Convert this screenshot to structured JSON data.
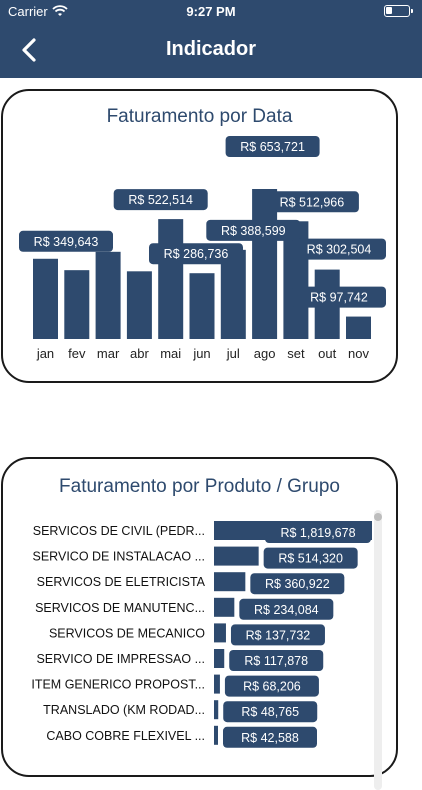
{
  "status_bar": {
    "carrier": "Carrier",
    "time": "9:27 PM"
  },
  "header": {
    "title": "Indicador",
    "back_icon": "chevron-left-icon"
  },
  "colors": {
    "primary": "#2e4a6e",
    "background": "#ffffff"
  },
  "chart_data": [
    {
      "type": "bar",
      "title": "Faturamento por Data",
      "categories": [
        "jan",
        "fev",
        "mar",
        "abr",
        "mai",
        "jun",
        "jul",
        "ago",
        "set",
        "out",
        "nov"
      ],
      "values": [
        349643,
        300000,
        380000,
        295000,
        522514,
        286736,
        388599,
        653721,
        512966,
        302504,
        97742
      ],
      "data_labels": {
        "0": "R$ 349,643",
        "4": "R$ 522,514",
        "5": "R$ 286,736",
        "6": "R$ 388,599",
        "7": "R$ 653,721",
        "8": "R$ 512,966",
        "9": "R$ 302,504",
        "10": "R$ 97,742"
      }
    },
    {
      "type": "bar",
      "orientation": "horizontal",
      "title": "Faturamento por Produto / Grupo",
      "categories": [
        "SERVICOS DE CIVIL (PEDR...",
        "SERVICO DE INSTALACAO ...",
        "SERVICOS DE ELETRICISTA",
        "SERVICOS DE MANUTENC...",
        "SERVICOS DE MECANICO",
        "SERVICO DE IMPRESSAO ...",
        "ITEM GENERICO PROPOST...",
        "TRANSLADO (KM RODAD...",
        "CABO COBRE FLEXIVEL ..."
      ],
      "values": [
        1819678,
        514320,
        360922,
        234084,
        137732,
        117878,
        68206,
        48765,
        42588
      ],
      "data_labels": [
        "R$ 1,819,678",
        "R$ 514,320",
        "R$ 360,922",
        "R$ 234,084",
        "R$ 137,732",
        "R$ 117,878",
        "R$ 68,206",
        "R$ 48,765",
        "R$ 42,588"
      ]
    }
  ]
}
